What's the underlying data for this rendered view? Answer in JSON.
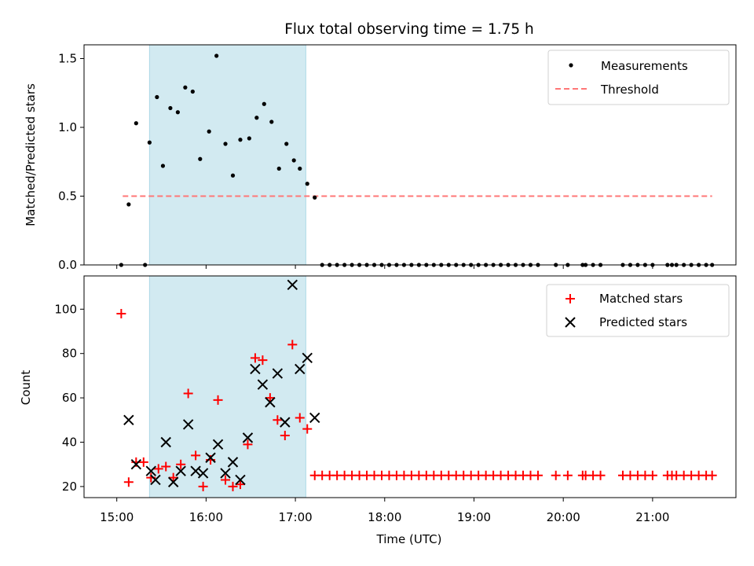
{
  "title": "Flux total observing time = 1.75 h",
  "colors": {
    "measurement": "#000000",
    "threshold": "#ff7777",
    "matched": "#ff0000",
    "predicted": "#000000",
    "span": "#add8e6"
  },
  "chart_data": [
    {
      "type": "scatter",
      "ylabel": "Matched/Predicted stars",
      "xlabel": "",
      "xlim": [
        "14:38",
        "21:56"
      ],
      "ylim": [
        0,
        1.6
      ],
      "yticks": [
        0.0,
        0.5,
        1.0,
        1.5
      ],
      "ytick_labels": [
        "0.0",
        "0.5",
        "1.0",
        "1.5"
      ],
      "highlight_span": [
        "15:22",
        "17:07"
      ],
      "legend_position": "top-right",
      "threshold": {
        "name": "Threshold",
        "y": 0.5,
        "x_start": "15:04",
        "x_end": "21:40",
        "style": "dashed"
      },
      "series": [
        {
          "name": "Measurements",
          "marker": "dot",
          "points": [
            [
              "15:03",
              0.0
            ],
            [
              "15:08",
              0.44
            ],
            [
              "15:13",
              1.03
            ],
            [
              "15:19",
              0.0
            ],
            [
              "15:22",
              0.89
            ],
            [
              "15:27",
              1.22
            ],
            [
              "15:31",
              0.72
            ],
            [
              "15:36",
              1.14
            ],
            [
              "15:41",
              1.11
            ],
            [
              "15:46",
              1.29
            ],
            [
              "15:51",
              1.26
            ],
            [
              "15:56",
              0.77
            ],
            [
              "16:02",
              0.97
            ],
            [
              "16:07",
              1.52
            ],
            [
              "16:13",
              0.88
            ],
            [
              "16:18",
              0.65
            ],
            [
              "16:23",
              0.91
            ],
            [
              "16:29",
              0.92
            ],
            [
              "16:34",
              1.07
            ],
            [
              "16:39",
              1.17
            ],
            [
              "16:44",
              1.04
            ],
            [
              "16:49",
              0.7
            ],
            [
              "16:54",
              0.88
            ],
            [
              "16:59",
              0.76
            ],
            [
              "17:03",
              0.7
            ],
            [
              "17:08",
              0.59
            ],
            [
              "17:13",
              0.49
            ],
            [
              "17:18",
              0.0
            ],
            [
              "17:23",
              0.0
            ],
            [
              "17:28",
              0.0
            ],
            [
              "17:33",
              0.0
            ],
            [
              "17:38",
              0.0
            ],
            [
              "17:43",
              0.0
            ],
            [
              "17:48",
              0.0
            ],
            [
              "17:53",
              0.0
            ],
            [
              "17:58",
              0.0
            ],
            [
              "18:03",
              0.0
            ],
            [
              "18:08",
              0.0
            ],
            [
              "18:13",
              0.0
            ],
            [
              "18:18",
              0.0
            ],
            [
              "18:23",
              0.0
            ],
            [
              "18:28",
              0.0
            ],
            [
              "18:33",
              0.0
            ],
            [
              "18:38",
              0.0
            ],
            [
              "18:43",
              0.0
            ],
            [
              "18:48",
              0.0
            ],
            [
              "18:53",
              0.0
            ],
            [
              "18:58",
              0.0
            ],
            [
              "19:03",
              0.0
            ],
            [
              "19:08",
              0.0
            ],
            [
              "19:13",
              0.0
            ],
            [
              "19:18",
              0.0
            ],
            [
              "19:23",
              0.0
            ],
            [
              "19:28",
              0.0
            ],
            [
              "19:33",
              0.0
            ],
            [
              "19:38",
              0.0
            ],
            [
              "19:43",
              0.0
            ],
            [
              "19:55",
              0.0
            ],
            [
              "20:03",
              0.0
            ],
            [
              "20:13",
              0.0
            ],
            [
              "20:15",
              0.0
            ],
            [
              "20:20",
              0.0
            ],
            [
              "20:25",
              0.0
            ],
            [
              "20:40",
              0.0
            ],
            [
              "20:45",
              0.0
            ],
            [
              "20:50",
              0.0
            ],
            [
              "20:55",
              0.0
            ],
            [
              "21:00",
              0.0
            ],
            [
              "21:10",
              0.0
            ],
            [
              "21:13",
              0.0
            ],
            [
              "21:16",
              0.0
            ],
            [
              "21:21",
              0.0
            ],
            [
              "21:26",
              0.0
            ],
            [
              "21:31",
              0.0
            ],
            [
              "21:36",
              0.0
            ],
            [
              "21:40",
              0.0
            ]
          ]
        }
      ]
    },
    {
      "type": "scatter",
      "ylabel": "Count",
      "xlabel": "Time (UTC)",
      "xlim": [
        "14:38",
        "21:56"
      ],
      "ylim": [
        15,
        115
      ],
      "yticks": [
        20,
        40,
        60,
        80,
        100
      ],
      "ytick_labels": [
        "20",
        "40",
        "60",
        "80",
        "100"
      ],
      "xticks": [
        "15:00",
        "16:00",
        "17:00",
        "18:00",
        "19:00",
        "20:00",
        "21:00"
      ],
      "xtick_labels": [
        "15:00",
        "16:00",
        "17:00",
        "18:00",
        "19:00",
        "20:00",
        "21:00"
      ],
      "highlight_span": [
        "15:22",
        "17:07"
      ],
      "legend_position": "top-right",
      "series": [
        {
          "name": "Matched stars",
          "marker": "plus",
          "points": [
            [
              "15:03",
              98
            ],
            [
              "15:08",
              22
            ],
            [
              "15:13",
              31
            ],
            [
              "15:18",
              31
            ],
            [
              "15:23",
              24
            ],
            [
              "15:28",
              28
            ],
            [
              "15:33",
              29
            ],
            [
              "15:38",
              24
            ],
            [
              "15:43",
              30
            ],
            [
              "15:48",
              62
            ],
            [
              "15:53",
              34
            ],
            [
              "15:58",
              20
            ],
            [
              "16:03",
              32
            ],
            [
              "16:08",
              59
            ],
            [
              "16:13",
              23
            ],
            [
              "16:18",
              20
            ],
            [
              "16:23",
              21
            ],
            [
              "16:28",
              39
            ],
            [
              "16:33",
              78
            ],
            [
              "16:38",
              77
            ],
            [
              "16:43",
              60
            ],
            [
              "16:48",
              50
            ],
            [
              "16:53",
              43
            ],
            [
              "16:58",
              84
            ],
            [
              "17:03",
              51
            ],
            [
              "17:08",
              46
            ],
            [
              "17:13",
              25
            ],
            [
              "17:18",
              25
            ],
            [
              "17:23",
              25
            ],
            [
              "17:28",
              25
            ],
            [
              "17:33",
              25
            ],
            [
              "17:38",
              25
            ],
            [
              "17:43",
              25
            ],
            [
              "17:48",
              25
            ],
            [
              "17:53",
              25
            ],
            [
              "17:58",
              25
            ],
            [
              "18:03",
              25
            ],
            [
              "18:08",
              25
            ],
            [
              "18:13",
              25
            ],
            [
              "18:18",
              25
            ],
            [
              "18:23",
              25
            ],
            [
              "18:28",
              25
            ],
            [
              "18:33",
              25
            ],
            [
              "18:38",
              25
            ],
            [
              "18:43",
              25
            ],
            [
              "18:48",
              25
            ],
            [
              "18:53",
              25
            ],
            [
              "18:58",
              25
            ],
            [
              "19:03",
              25
            ],
            [
              "19:08",
              25
            ],
            [
              "19:13",
              25
            ],
            [
              "19:18",
              25
            ],
            [
              "19:23",
              25
            ],
            [
              "19:28",
              25
            ],
            [
              "19:33",
              25
            ],
            [
              "19:38",
              25
            ],
            [
              "19:43",
              25
            ],
            [
              "19:55",
              25
            ],
            [
              "20:03",
              25
            ],
            [
              "20:13",
              25
            ],
            [
              "20:15",
              25
            ],
            [
              "20:20",
              25
            ],
            [
              "20:25",
              25
            ],
            [
              "20:40",
              25
            ],
            [
              "20:45",
              25
            ],
            [
              "20:50",
              25
            ],
            [
              "20:55",
              25
            ],
            [
              "21:00",
              25
            ],
            [
              "21:10",
              25
            ],
            [
              "21:13",
              25
            ],
            [
              "21:16",
              25
            ],
            [
              "21:21",
              25
            ],
            [
              "21:26",
              25
            ],
            [
              "21:31",
              25
            ],
            [
              "21:36",
              25
            ],
            [
              "21:40",
              25
            ]
          ]
        },
        {
          "name": "Predicted stars",
          "marker": "x",
          "points": [
            [
              "15:08",
              50
            ],
            [
              "15:13",
              30
            ],
            [
              "15:23",
              27
            ],
            [
              "15:26",
              23
            ],
            [
              "15:33",
              40
            ],
            [
              "15:38",
              22
            ],
            [
              "15:43",
              27
            ],
            [
              "15:48",
              48
            ],
            [
              "15:53",
              27
            ],
            [
              "15:58",
              26
            ],
            [
              "16:03",
              33
            ],
            [
              "16:08",
              39
            ],
            [
              "16:13",
              26
            ],
            [
              "16:18",
              31
            ],
            [
              "16:23",
              23
            ],
            [
              "16:28",
              42
            ],
            [
              "16:33",
              73
            ],
            [
              "16:38",
              66
            ],
            [
              "16:43",
              58
            ],
            [
              "16:48",
              71
            ],
            [
              "16:53",
              49
            ],
            [
              "16:58",
              111
            ],
            [
              "17:03",
              73
            ],
            [
              "17:08",
              78
            ],
            [
              "17:13",
              51
            ]
          ]
        }
      ]
    }
  ]
}
